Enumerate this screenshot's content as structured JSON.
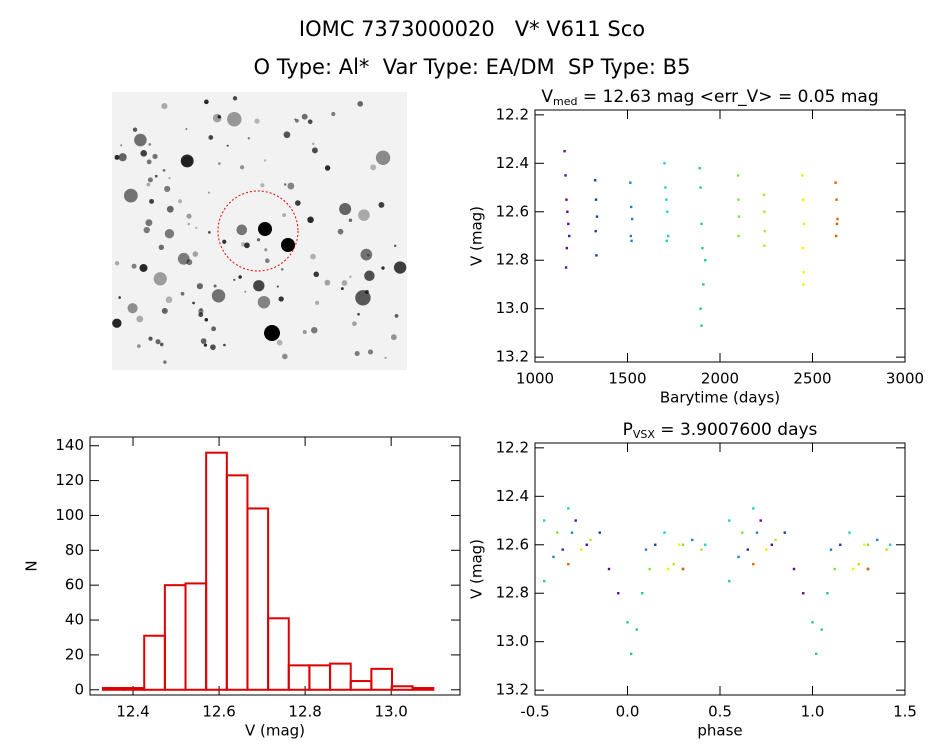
{
  "header": {
    "title": "IOMC 7373000020   V* V611 Sco",
    "subtitle": "O Type: Al*  Var Type: EA/DM  SP Type: B5"
  },
  "chart_data": [
    {
      "type": "scatter",
      "title": "V",
      "title_subscript": "med",
      "title_suffix": " = 12.63 mag <err_V> = 0.05 mag",
      "xlabel": "Barytime (days)",
      "ylabel": "V (mag)",
      "xlim": [
        1000,
        3000
      ],
      "xticks": [
        1000,
        1500,
        2000,
        2500,
        3000
      ],
      "ylim": [
        13.22,
        12.18
      ],
      "yticks": [
        12.2,
        12.4,
        12.6,
        12.8,
        {
          "value": 13,
          "label": "13.0"
        },
        13.2
      ],
      "series": [
        {
          "color": "#5a0a9a",
          "x": [
            1160,
            1165,
            1170,
            1175,
            1180,
            1185,
            1172,
            1168
          ],
          "values": [
            12.35,
            12.45,
            12.55,
            12.6,
            12.65,
            12.7,
            12.75,
            12.83
          ]
        },
        {
          "color": "#1a3aa0",
          "x": [
            1325,
            1330,
            1335,
            1328,
            1332
          ],
          "values": [
            12.47,
            12.55,
            12.62,
            12.68,
            12.78
          ]
        },
        {
          "color": "#2080d0",
          "x": [
            1515,
            1520,
            1525,
            1518,
            1522
          ],
          "values": [
            12.48,
            12.58,
            12.63,
            12.7,
            12.72
          ]
        },
        {
          "color": "#20d0c0",
          "x": [
            1700,
            1705,
            1710,
            1715,
            1720,
            1712
          ],
          "values": [
            12.4,
            12.5,
            12.55,
            12.6,
            12.7,
            12.72
          ]
        },
        {
          "color": "#20d080",
          "x": [
            1890,
            1895,
            1900,
            1905,
            1910,
            1895,
            1900,
            1920
          ],
          "values": [
            12.42,
            12.5,
            12.65,
            12.75,
            12.9,
            13.0,
            13.07,
            12.8
          ]
        },
        {
          "color": "#80e040",
          "x": [
            2098,
            2100,
            2102,
            2100
          ],
          "values": [
            12.45,
            12.55,
            12.62,
            12.7
          ]
        },
        {
          "color": "#c0e020",
          "x": [
            2238,
            2240,
            2242,
            2240
          ],
          "values": [
            12.53,
            12.6,
            12.68,
            12.74
          ]
        },
        {
          "color": "#f0f000",
          "x": [
            2445,
            2450,
            2455,
            2448,
            2452,
            2450
          ],
          "values": [
            12.45,
            12.55,
            12.65,
            12.75,
            12.85,
            12.9
          ]
        },
        {
          "color": "#e06000",
          "x": [
            2625,
            2630,
            2635,
            2632,
            2628
          ],
          "values": [
            12.48,
            12.55,
            12.63,
            12.65,
            12.7
          ]
        }
      ]
    },
    {
      "type": "histogram",
      "xlabel": "V (mag)",
      "ylabel": "N",
      "color": "#dd0000",
      "xlim": [
        12.3,
        13.16
      ],
      "xticks": [
        12.4,
        12.6,
        12.8,
        {
          "value": 13,
          "label": "13.0"
        }
      ],
      "ylim": [
        -3,
        145
      ],
      "yticks": [
        0,
        20,
        40,
        60,
        80,
        100,
        120,
        140
      ],
      "bins": [
        12.33,
        12.378,
        12.426,
        12.474,
        12.522,
        12.57,
        12.618,
        12.666,
        12.714,
        12.762,
        12.81,
        12.858,
        12.906,
        12.954,
        13.002,
        13.05,
        13.098
      ],
      "values": [
        1,
        1,
        31,
        60,
        61,
        136,
        123,
        104,
        41,
        14,
        14,
        15,
        5,
        12,
        2,
        1
      ]
    },
    {
      "type": "scatter",
      "title": "P",
      "title_subscript": "VSX",
      "title_suffix": " = 3.9007600 days",
      "xlabel": "phase",
      "ylabel": "V (mag)",
      "xlim": [
        -0.5,
        1.5
      ],
      "xticks": [
        -0.5,
        {
          "value": 0,
          "label": "0.0"
        },
        0.5,
        {
          "value": 1,
          "label": "1.0"
        },
        1.5
      ],
      "ylim": [
        13.22,
        12.18
      ],
      "yticks": [
        12.2,
        12.4,
        12.6,
        12.8,
        {
          "value": 13,
          "label": "13.0"
        },
        13.2
      ],
      "series": [
        {
          "color": "#5a0a9a",
          "x": [
            -0.28,
            -0.22,
            -0.1,
            -0.05,
            0.72,
            0.78,
            0.9,
            0.95
          ],
          "values": [
            12.5,
            12.6,
            12.7,
            12.8,
            12.5,
            12.6,
            12.7,
            12.8
          ]
        },
        {
          "color": "#1a3aa0",
          "x": [
            -0.35,
            -0.15,
            0.15,
            0.3,
            0.65,
            0.85,
            1.15,
            1.3
          ],
          "values": [
            12.62,
            12.55,
            12.6,
            12.7,
            12.62,
            12.55,
            12.6,
            12.7
          ]
        },
        {
          "color": "#2080d0",
          "x": [
            -0.4,
            -0.3,
            0.1,
            0.35,
            0.6,
            0.7,
            1.1,
            1.35
          ],
          "values": [
            12.65,
            12.55,
            12.62,
            12.58,
            12.65,
            12.55,
            12.62,
            12.58
          ]
        },
        {
          "color": "#20d0c0",
          "x": [
            -0.45,
            -0.32,
            0.2,
            0.42,
            0.55,
            0.68,
            1.2,
            1.42
          ],
          "values": [
            12.5,
            12.45,
            12.55,
            12.6,
            12.5,
            12.45,
            12.55,
            12.6
          ]
        },
        {
          "color": "#20d080",
          "x": [
            -0.45,
            0,
            0.02,
            0.05,
            0.08,
            0.55,
            1,
            1.02,
            1.05,
            1.08
          ],
          "values": [
            12.75,
            12.92,
            13.05,
            12.95,
            12.8,
            12.75,
            12.92,
            13.05,
            12.95,
            12.8
          ]
        },
        {
          "color": "#80e040",
          "x": [
            -0.38,
            0.12,
            0.3,
            0.62,
            1.12,
            1.3
          ],
          "values": [
            12.55,
            12.7,
            12.6,
            12.55,
            12.7,
            12.6
          ]
        },
        {
          "color": "#c0e020",
          "x": [
            -0.2,
            0.25,
            0.4,
            0.8,
            1.25,
            1.4
          ],
          "values": [
            12.58,
            12.68,
            12.62,
            12.58,
            12.68,
            12.62
          ]
        },
        {
          "color": "#f0f000",
          "x": [
            -0.25,
            0.22,
            0.28,
            0.75,
            1.22,
            1.28
          ],
          "values": [
            12.62,
            12.7,
            12.6,
            12.62,
            12.7,
            12.6
          ]
        },
        {
          "color": "#e06000",
          "x": [
            -0.32,
            0.3,
            0.68,
            1.3
          ],
          "values": [
            12.68,
            12.7,
            12.68,
            12.7
          ]
        }
      ]
    }
  ]
}
